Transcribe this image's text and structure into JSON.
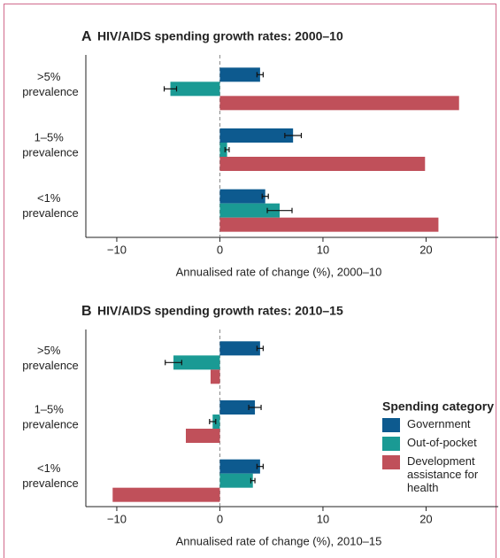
{
  "chart_data": [
    {
      "type": "bar",
      "orientation": "horizontal",
      "panel_label": "A",
      "title": "HIV/AIDS spending growth rates: 2000–10",
      "xlabel": "Annualised rate of change (%), 2000–10",
      "categories": [
        ">5% prevalence",
        "1–5% prevalence",
        "<1% prevalence"
      ],
      "series": [
        {
          "color": "#0d5a8f",
          "values": [
            3.9,
            7.1,
            4.4
          ],
          "errors": [
            0.3,
            0.8,
            0.3
          ]
        },
        {
          "color": "#1a9a94",
          "values": [
            -4.8,
            0.7,
            5.8
          ],
          "errors": [
            0.6,
            0.2,
            1.2
          ]
        },
        {
          "color": "#c0505a",
          "values": [
            23.2,
            19.9,
            21.2
          ]
        }
      ],
      "xlim": [
        -13,
        27
      ],
      "xticks": [
        {
          "value": -10,
          "label": "−10"
        },
        0,
        10,
        20
      ]
    },
    {
      "type": "bar",
      "orientation": "horizontal",
      "panel_label": "B",
      "title": "HIV/AIDS spending growth rates: 2010–15",
      "xlabel": "Annualised rate of change (%), 2010–15",
      "categories": [
        ">5% prevalence",
        "1–5% prevalence",
        "<1% prevalence"
      ],
      "series": [
        {
          "name": "Government",
          "color": "#0d5a8f",
          "values": [
            3.9,
            3.4,
            3.9
          ],
          "errors": [
            0.3,
            0.6,
            0.3
          ]
        },
        {
          "name": "Out-of-pocket",
          "color": "#1a9a94",
          "values": [
            -4.5,
            -0.7,
            3.2
          ],
          "errors": [
            0.8,
            0.3,
            0.2
          ]
        },
        {
          "name": "Development assistance for health",
          "color": "#c0505a",
          "values": [
            -0.9,
            -3.3,
            -10.4
          ]
        }
      ],
      "xlim": [
        -13,
        27
      ],
      "xticks": [
        {
          "value": -10,
          "label": "−10"
        },
        0,
        10,
        20
      ],
      "legend": "center right",
      "legend_title": "Spending category"
    }
  ]
}
